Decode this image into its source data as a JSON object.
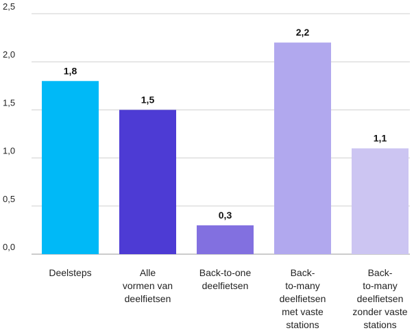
{
  "chart_data": {
    "type": "bar",
    "categories": [
      "Deelsteps",
      "Alle vormen van deelfietsen",
      "Back-to-one deelfietsen",
      "Back-to-many deelfietsen met vaste stations",
      "Back-to-many deelfietsen zonder vaste stations"
    ],
    "category_label_lines": [
      [
        "Deelsteps"
      ],
      [
        "Alle",
        "vormen van",
        "deelfietsen"
      ],
      [
        "Back-to-one",
        "deelfietsen"
      ],
      [
        "Back-",
        "to-many",
        "deelfietsen",
        "met vaste",
        "stations"
      ],
      [
        "Back-",
        "to-many",
        "deelfietsen",
        "zonder vaste",
        "stations"
      ]
    ],
    "values": [
      1.8,
      1.5,
      0.3,
      2.2,
      1.1
    ],
    "value_labels": [
      "1,8",
      "1,5",
      "0,3",
      "2,2",
      "1,1"
    ],
    "bar_colors": [
      "#00b9f7",
      "#4d3bd4",
      "#8270e0",
      "#b1a8ee",
      "#ccc5f2"
    ],
    "ylim": [
      0,
      2.5
    ],
    "yticks": [
      0,
      0.5,
      1.0,
      1.5,
      2.0,
      2.5
    ],
    "ytick_labels": [
      "0,0",
      "0,5",
      "1,0",
      "1,5",
      "2,0",
      "2,5"
    ],
    "grid": true,
    "title": "",
    "xlabel": "",
    "ylabel": ""
  }
}
